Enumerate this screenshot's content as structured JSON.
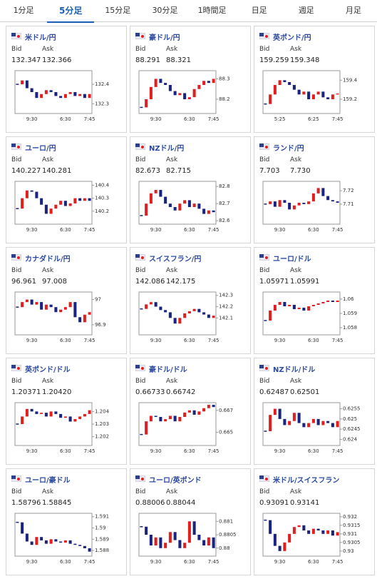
{
  "tabs": [
    "1分足",
    "5分足",
    "15分足",
    "30分足",
    "1時間足",
    "日足",
    "週足",
    "月足"
  ],
  "bid_label": "Bid",
  "ask_label": "Ask",
  "charts": [
    {
      "title": "米ドル/円",
      "bid": "132.347",
      "ask": "132.366",
      "chart_data": {
        "type": "candlestick",
        "categories": [
          null,
          null,
          null,
          "9:30",
          null,
          null,
          null,
          null,
          null,
          null,
          "6:30",
          null,
          null,
          null,
          null,
          "7:45"
        ],
        "values": [
          132.4,
          132.42,
          132.38,
          132.36,
          132.33,
          132.35,
          132.37,
          132.36,
          132.34,
          132.33,
          132.35,
          132.36,
          132.34,
          132.35,
          132.33,
          132.35
        ],
        "ylim": [
          132.25,
          132.47
        ],
        "yticks": [
          132.3,
          132.4
        ]
      }
    },
    {
      "title": "豪ドル/円",
      "bid": "88.291",
      "ask": "88.321",
      "chart_data": {
        "type": "candlestick",
        "categories": [
          null,
          null,
          null,
          "9:30",
          null,
          null,
          null,
          null,
          null,
          null,
          "6:30",
          null,
          null,
          null,
          null,
          "7:45"
        ],
        "values": [
          88.16,
          88.2,
          88.26,
          88.3,
          88.28,
          88.27,
          88.24,
          88.22,
          88.23,
          88.2,
          88.21,
          88.25,
          88.27,
          88.29,
          88.28,
          88.3
        ],
        "ylim": [
          88.13,
          88.34
        ],
        "yticks": [
          88.2,
          88.3
        ]
      }
    },
    {
      "title": "英ポンド/円",
      "bid": "159.259",
      "ask": "159.348",
      "chart_data": {
        "type": "candlestick",
        "categories": [
          null,
          null,
          null,
          "5:25",
          null,
          null,
          null,
          null,
          null,
          null,
          "6:25",
          null,
          null,
          null,
          null,
          "7:45"
        ],
        "values": [
          159.15,
          159.25,
          159.35,
          159.4,
          159.38,
          159.35,
          159.3,
          159.25,
          159.28,
          159.2,
          159.25,
          159.28,
          159.22,
          159.2,
          159.25,
          159.26
        ],
        "ylim": [
          159.05,
          159.5
        ],
        "yticks": [
          159.2,
          159.4
        ]
      }
    },
    {
      "title": "ユーロ/円",
      "bid": "140.227",
      "ask": "140.281",
      "chart_data": {
        "type": "candlestick",
        "categories": [
          null,
          null,
          null,
          "9:30",
          null,
          null,
          null,
          null,
          null,
          null,
          "6:30",
          null,
          null,
          null,
          null,
          "7:45"
        ],
        "values": [
          140.22,
          140.3,
          140.36,
          140.35,
          140.3,
          140.25,
          140.18,
          140.22,
          140.25,
          140.28,
          140.24,
          140.26,
          140.3,
          140.28,
          140.3,
          140.28
        ],
        "ylim": [
          140.1,
          140.43
        ],
        "yticks": [
          140.2,
          140.3,
          140.4
        ]
      }
    },
    {
      "title": "NZドル/円",
      "bid": "82.673",
      "ask": "82.715",
      "chart_data": {
        "type": "candlestick",
        "categories": [
          null,
          null,
          null,
          "9:30",
          null,
          null,
          null,
          null,
          null,
          null,
          "6:30",
          null,
          null,
          null,
          null,
          "7:45"
        ],
        "values": [
          82.63,
          82.7,
          82.76,
          82.78,
          82.74,
          82.7,
          82.68,
          82.66,
          82.7,
          82.72,
          82.68,
          82.7,
          82.67,
          82.64,
          82.66,
          82.65
        ],
        "ylim": [
          82.58,
          82.83
        ],
        "yticks": [
          82.6,
          82.7,
          82.8
        ]
      }
    },
    {
      "title": "ランド/円",
      "bid": "7.703",
      "ask": "7.730",
      "chart_data": {
        "type": "candlestick",
        "categories": [
          null,
          null,
          null,
          "9:30",
          null,
          null,
          null,
          null,
          null,
          null,
          "6:30",
          null,
          null,
          null,
          null,
          "7:45"
        ],
        "values": [
          7.71,
          7.712,
          7.708,
          7.713,
          7.711,
          7.706,
          7.709,
          7.711,
          7.71,
          7.712,
          7.718,
          7.722,
          7.716,
          7.713,
          7.712,
          7.711
        ],
        "ylim": [
          7.695,
          7.727
        ],
        "yticks": [
          7.71,
          7.72
        ]
      }
    },
    {
      "title": "カナダドル/円",
      "bid": "96.961",
      "ask": "97.008",
      "chart_data": {
        "type": "candlestick",
        "categories": [
          null,
          null,
          null,
          "9:30",
          null,
          null,
          null,
          null,
          null,
          null,
          "6:30",
          null,
          null,
          null,
          null,
          "7:45"
        ],
        "values": [
          96.97,
          96.99,
          97.0,
          96.98,
          96.99,
          96.96,
          96.98,
          96.97,
          96.95,
          96.96,
          96.97,
          96.99,
          96.93,
          96.91,
          96.94,
          96.95
        ],
        "ylim": [
          96.86,
          97.03
        ],
        "yticks": [
          96.9,
          97
        ]
      }
    },
    {
      "title": "スイスフラン/円",
      "bid": "142.086",
      "ask": "142.175",
      "chart_data": {
        "type": "candlestick",
        "categories": [
          null,
          null,
          null,
          "9:30",
          null,
          null,
          null,
          null,
          null,
          null,
          "6:30",
          null,
          null,
          null,
          null,
          "7:45"
        ],
        "values": [
          142.18,
          142.22,
          142.24,
          142.2,
          142.17,
          142.15,
          142.1,
          142.05,
          142.1,
          142.14,
          142.16,
          142.18,
          142.15,
          142.13,
          142.1,
          142.12
        ],
        "ylim": [
          141.95,
          142.33
        ],
        "yticks": [
          142.1,
          142.2,
          142.3
        ]
      }
    },
    {
      "title": "ユーロ/ドル",
      "bid": "1.05971",
      "ask": "1.05991",
      "chart_data": {
        "type": "candlestick",
        "categories": [
          null,
          null,
          null,
          "9:30",
          null,
          null,
          null,
          null,
          null,
          null,
          "6:30",
          null,
          null,
          null,
          null,
          "7:45"
        ],
        "values": [
          1.0585,
          1.0592,
          1.0596,
          1.0598,
          1.0595,
          1.0596,
          1.0593,
          1.0594,
          1.0592,
          1.0595,
          1.0596,
          1.0597,
          1.0598,
          1.0599,
          1.0598,
          1.0599
        ],
        "ylim": [
          1.0575,
          1.0605
        ],
        "yticks": [
          1.058,
          1.059,
          1.06
        ]
      }
    },
    {
      "title": "英ポンド/ドル",
      "bid": "1.20371",
      "ask": "1.20420",
      "chart_data": {
        "type": "candlestick",
        "categories": [
          null,
          null,
          null,
          "9:30",
          null,
          null,
          null,
          null,
          null,
          null,
          "6:30",
          null,
          null,
          null,
          null,
          "7:45"
        ],
        "values": [
          1.203,
          1.2036,
          1.2042,
          1.204,
          1.2038,
          1.2039,
          1.2036,
          1.204,
          1.2038,
          1.2035,
          1.2036,
          1.2032,
          1.2034,
          1.2036,
          1.2038,
          1.2041
        ],
        "ylim": [
          1.2013,
          1.2047
        ],
        "yticks": [
          1.202,
          1.203,
          1.204
        ]
      }
    },
    {
      "title": "豪ドル/ドル",
      "bid": "0.66733",
      "ask": "0.66742",
      "chart_data": {
        "type": "candlestick",
        "categories": [
          null,
          null,
          null,
          "9:30",
          null,
          null,
          null,
          null,
          null,
          null,
          "6:30",
          null,
          null,
          null,
          null,
          "7:45"
        ],
        "values": [
          0.6648,
          0.666,
          0.6665,
          0.6664,
          0.666,
          0.6662,
          0.6665,
          0.666,
          0.6664,
          0.6668,
          0.667,
          0.6666,
          0.6669,
          0.6672,
          0.6675,
          0.6673
        ],
        "ylim": [
          0.6638,
          0.6677
        ],
        "yticks": [
          0.665,
          0.667
        ]
      }
    },
    {
      "title": "NZドル/ドル",
      "bid": "0.62487",
      "ask": "0.62501",
      "chart_data": {
        "type": "candlestick",
        "categories": [
          null,
          null,
          null,
          "9:30",
          null,
          null,
          null,
          null,
          null,
          null,
          "6:30",
          null,
          null,
          null,
          null,
          "7:45"
        ],
        "values": [
          0.6244,
          0.6252,
          0.6255,
          0.625,
          0.6247,
          0.6249,
          0.6253,
          0.6248,
          0.6246,
          0.6248,
          0.625,
          0.6247,
          0.6249,
          0.6248,
          0.6246,
          0.6249
        ],
        "ylim": [
          0.6237,
          0.6258
        ],
        "yticks": [
          0.624,
          0.6245,
          0.625,
          0.6255
        ]
      }
    },
    {
      "title": "ユーロ/豪ドル",
      "bid": "1.58796",
      "ask": "1.58845",
      "chart_data": {
        "type": "candlestick",
        "categories": [
          null,
          null,
          null,
          "9:30",
          null,
          null,
          null,
          null,
          null,
          null,
          "6:30",
          null,
          null,
          null,
          null,
          "7:45"
        ],
        "values": [
          1.5905,
          1.5895,
          1.5888,
          1.5885,
          1.5892,
          1.5889,
          1.5886,
          1.589,
          1.5888,
          1.5887,
          1.5889,
          1.5886,
          1.5885,
          1.5884,
          1.5882,
          1.5879
        ],
        "ylim": [
          1.5875,
          1.5913
        ],
        "yticks": [
          1.588,
          1.589,
          1.59,
          1.591
        ]
      }
    },
    {
      "title": "ユーロ/英ポンド",
      "bid": "0.88006",
      "ask": "0.88044",
      "chart_data": {
        "type": "candlestick",
        "categories": [
          null,
          null,
          null,
          "9:30",
          null,
          null,
          null,
          null,
          null,
          null,
          "6:30",
          null,
          null,
          null,
          null,
          "7:45"
        ],
        "values": [
          0.8808,
          0.8805,
          0.8801,
          0.8804,
          0.88,
          0.8802,
          0.8806,
          0.8803,
          0.88,
          0.8802,
          0.881,
          0.8805,
          0.8803,
          0.8801,
          0.8804,
          0.88
        ],
        "ylim": [
          0.8797,
          0.8813
        ],
        "yticks": [
          0.88,
          0.8805,
          0.881
        ]
      }
    },
    {
      "title": "米ドル/スイスフラン",
      "bid": "0.93091",
      "ask": "0.93141",
      "chart_data": {
        "type": "candlestick",
        "categories": [
          null,
          null,
          null,
          "9:30",
          null,
          null,
          null,
          null,
          null,
          null,
          "6:30",
          null,
          null,
          null,
          null,
          "7:45"
        ],
        "values": [
          0.9318,
          0.931,
          0.9303,
          0.93,
          0.9305,
          0.931,
          0.9314,
          0.9315,
          0.9312,
          0.931,
          0.9313,
          0.9312,
          0.931,
          0.9312,
          0.9309,
          0.9311
        ],
        "ylim": [
          0.9297,
          0.9322
        ],
        "yticks": [
          0.93,
          0.9305,
          0.931,
          0.9315,
          0.932
        ]
      }
    }
  ]
}
